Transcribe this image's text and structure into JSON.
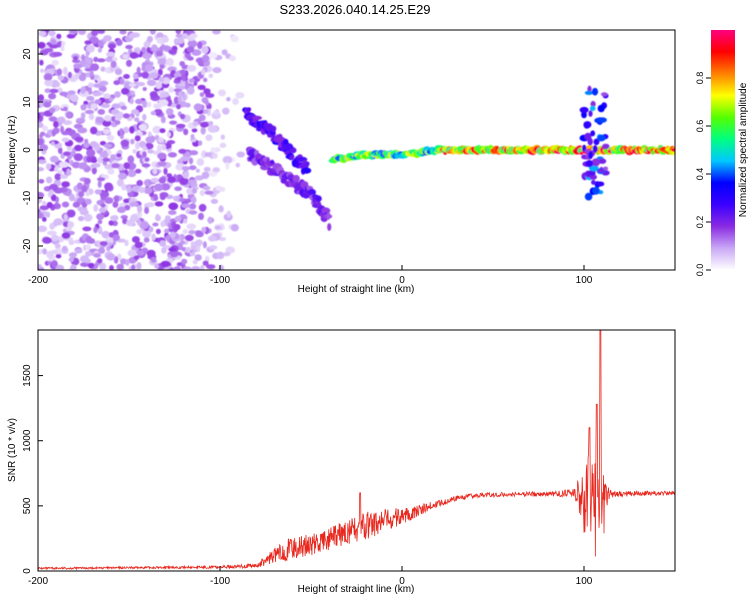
{
  "figure_title": "S233.2026.040.14.25.E29",
  "chart_data": [
    {
      "type": "heatmap",
      "title": "S233.2026.040.14.25.E29",
      "xlabel": "Height of straight line (km)",
      "ylabel": "Frequency (Hz)",
      "xlim": [
        -200,
        150
      ],
      "ylim": [
        -25,
        25
      ],
      "xticks": [
        -200,
        -100,
        0,
        100
      ],
      "xtick_labels": [
        "-200",
        "-100",
        "0",
        "100"
      ],
      "yticks": [
        -20,
        -10,
        0,
        10,
        20
      ],
      "ytick_labels": [
        "-20",
        "-10",
        "0",
        "10",
        "20"
      ],
      "colorbar": {
        "label": "Normalized spectral amplitude",
        "range": [
          0,
          1
        ],
        "ticks": [
          0.0,
          0.2,
          0.4,
          0.6,
          0.8
        ],
        "tick_labels": [
          "0.0",
          "0.2",
          "0.4",
          "0.6",
          "0.8"
        ],
        "colors": [
          "#ffffff",
          "#c9a8f5",
          "#8a2be2",
          "#3a00ff",
          "#0000ff",
          "#00c8ff",
          "#00ff80",
          "#55ff00",
          "#ffff00",
          "#ff8000",
          "#ff0000",
          "#ff0080"
        ]
      },
      "features": [
        {
          "name": "noise region",
          "x_range": [
            -200,
            -85
          ],
          "freq_range": [
            -25,
            25
          ],
          "level": 0.1
        },
        {
          "name": "descending branch upper",
          "x": [
            -86,
            -80,
            -72,
            -65,
            -58,
            -52
          ],
          "freq": [
            8,
            6,
            4,
            1,
            -2,
            -4
          ],
          "level": 0.25
        },
        {
          "name": "descending branch lower",
          "x": [
            -84,
            -78,
            -70,
            -62,
            -55,
            -48,
            -40
          ],
          "freq": [
            -1,
            -2,
            -4,
            -6,
            -8,
            -10,
            -15
          ],
          "level": 0.2
        },
        {
          "name": "signal line",
          "x": [
            -38,
            -20,
            0,
            20,
            40,
            60,
            80,
            100,
            110,
            150
          ],
          "freq": [
            -2,
            -1,
            -1,
            0,
            0,
            0,
            0,
            0,
            0,
            0
          ],
          "level": 0.75
        },
        {
          "name": "spike near 105 km",
          "x_range": [
            100,
            112
          ],
          "freq_range": [
            -10,
            13
          ],
          "level": 0.3
        }
      ]
    },
    {
      "type": "line",
      "xlabel": "Height of straight line (km)",
      "ylabel": "SNR (10 * v/v)",
      "xlim": [
        -200,
        150
      ],
      "ylim": [
        0,
        1850
      ],
      "xticks": [
        -200,
        -100,
        0,
        100
      ],
      "xtick_labels": [
        "-200",
        "-100",
        "0",
        "100"
      ],
      "yticks": [
        0,
        500,
        1000,
        1500
      ],
      "ytick_labels": [
        "0",
        "500",
        "1000",
        "1500"
      ],
      "color": "#e8281e",
      "envelope": {
        "x": [
          -200,
          -150,
          -100,
          -80,
          -70,
          -60,
          -50,
          -40,
          -30,
          -20,
          -10,
          0,
          10,
          20,
          30,
          40,
          60,
          80,
          95,
          100,
          105,
          110,
          115,
          130,
          150
        ],
        "mean": [
          20,
          25,
          30,
          40,
          120,
          180,
          200,
          240,
          300,
          340,
          380,
          420,
          470,
          520,
          560,
          580,
          590,
          590,
          600,
          550,
          500,
          520,
          590,
          595,
          600
        ],
        "noise": [
          8,
          8,
          10,
          20,
          60,
          90,
          80,
          90,
          100,
          120,
          100,
          70,
          40,
          25,
          20,
          18,
          18,
          18,
          30,
          350,
          450,
          300,
          25,
          18,
          18
        ]
      },
      "peaks": [
        {
          "x": -23,
          "y": 600
        },
        {
          "x": 103,
          "y": 1100
        },
        {
          "x": 107,
          "y": 1280
        },
        {
          "x": 109,
          "y": 1850
        }
      ]
    }
  ]
}
